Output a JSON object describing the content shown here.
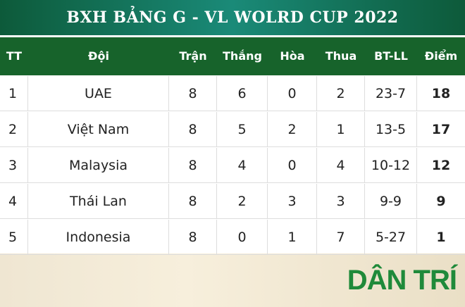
{
  "header": {
    "title": "BXH BẢNG G - VL WOLRD CUP 2022"
  },
  "table": {
    "columns": [
      "TT",
      "Đội",
      "Trận",
      "Thắng",
      "Hòa",
      "Thua",
      "BT-LL",
      "Điểm"
    ],
    "rows": [
      [
        "1",
        "UAE",
        "8",
        "6",
        "0",
        "2",
        "23-7",
        "18"
      ],
      [
        "2",
        "Việt Nam",
        "8",
        "5",
        "2",
        "1",
        "13-5",
        "17"
      ],
      [
        "3",
        "Malaysia",
        "8",
        "4",
        "0",
        "4",
        "10-12",
        "12"
      ],
      [
        "4",
        "Thái Lan",
        "8",
        "2",
        "3",
        "3",
        "9-9",
        "9"
      ],
      [
        "5",
        "Indonesia",
        "8",
        "0",
        "1",
        "7",
        "5-27",
        "1"
      ]
    ]
  },
  "logo": {
    "text": "DÂN TRÍ"
  }
}
